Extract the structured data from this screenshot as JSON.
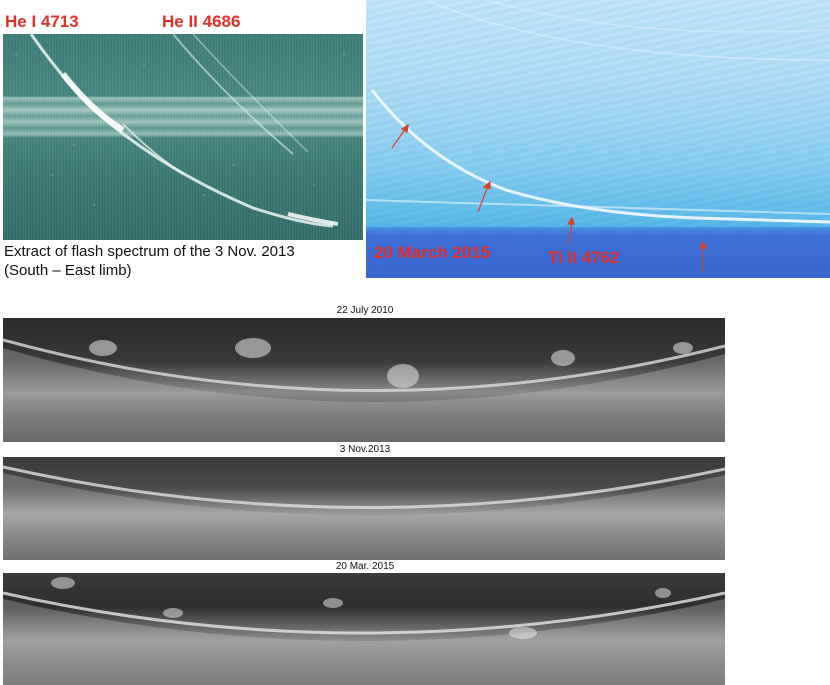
{
  "top_left": {
    "label_he1": "He I 4713",
    "label_he2": "He II 4686",
    "caption_line1": "Extract of flash spectrum of the 3 Nov. 2013",
    "caption_line2": "(South – East limb)"
  },
  "top_right": {
    "date_label": "20 March 2015",
    "line_label": "Ti II 4762"
  },
  "strips": [
    {
      "title": "22 July 2010"
    },
    {
      "title": "3 Nov.2013"
    },
    {
      "title": "20 Mar. 2015"
    }
  ],
  "colors": {
    "label_red": "#e0302a",
    "arrow_red": "#d8402e",
    "teal_bg": "#3f7e7a",
    "sky_bg": "#7cc8ee",
    "blue_band": "#3b66d0"
  }
}
